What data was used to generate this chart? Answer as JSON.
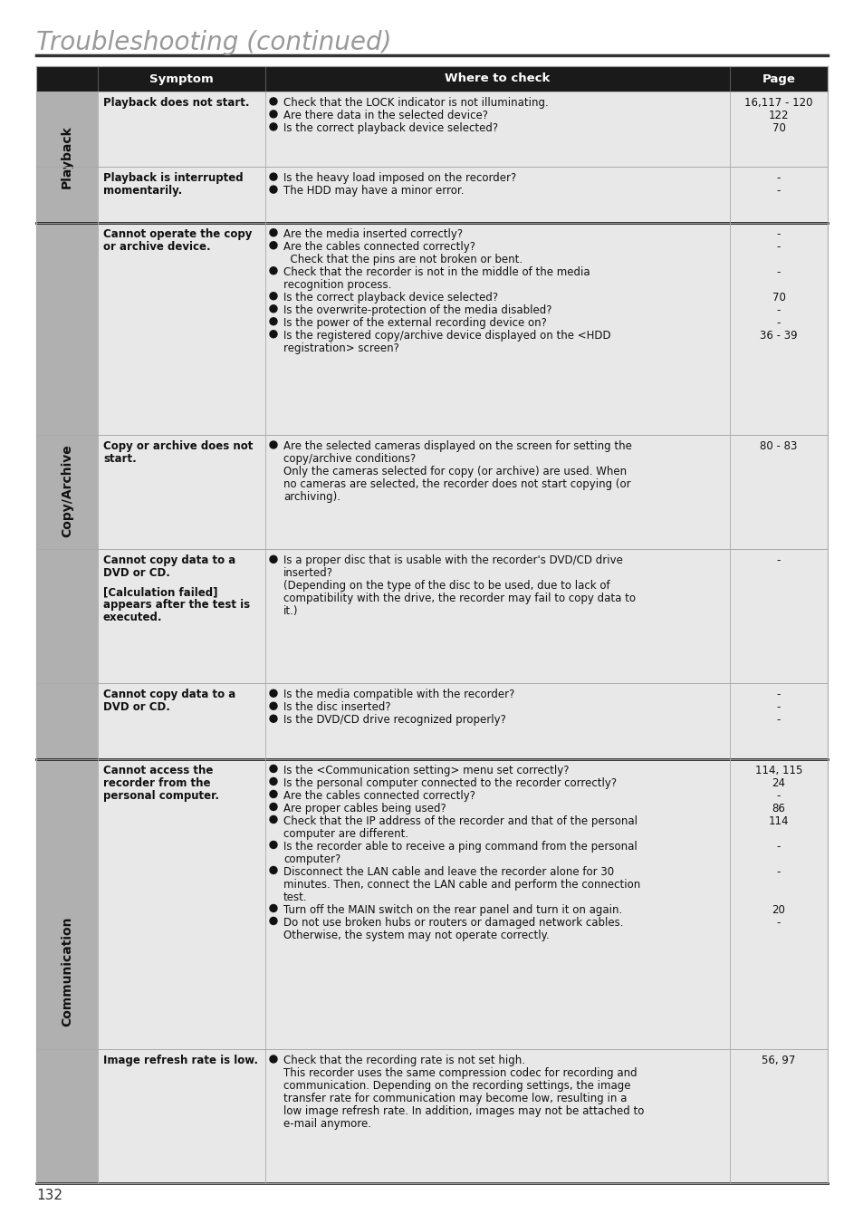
{
  "title": "Troubleshooting (continued)",
  "page_number": "132",
  "bg_color": "#ffffff",
  "header_bg": "#1a1a1a",
  "row_bg": "#e8e8e8",
  "section_label_bg": "#b0b0b0",
  "thick_border_color": "#222222",
  "thin_border_color": "#aaaaaa",
  "title_color": "#999999",
  "sections": [
    {
      "label": "Playback",
      "rows": [
        {
          "symptom_lines": [
            "Playback does not start."
          ],
          "bold": true,
          "checks": [
            {
              "bullet": true,
              "lines": [
                "Check that the LOCK indicator is not illuminating."
              ],
              "page": "16,117 - 120"
            },
            {
              "bullet": true,
              "lines": [
                "Are there data in the selected device?"
              ],
              "page": "122"
            },
            {
              "bullet": true,
              "lines": [
                "Is the correct playback device selected?"
              ],
              "page": "70"
            }
          ],
          "thick_bottom": false
        },
        {
          "symptom_lines": [
            "Playback is interrupted",
            "momentarily."
          ],
          "bold": true,
          "checks": [
            {
              "bullet": true,
              "lines": [
                "Is the heavy load imposed on the recorder?"
              ],
              "page": "-"
            },
            {
              "bullet": true,
              "lines": [
                "The HDD may have a minor error."
              ],
              "page": "-"
            }
          ],
          "thick_bottom": true
        }
      ]
    },
    {
      "label": "Copy/Archive",
      "rows": [
        {
          "symptom_lines": [
            "Cannot operate the copy",
            "or archive device."
          ],
          "bold": true,
          "checks": [
            {
              "bullet": true,
              "lines": [
                "Are the media inserted correctly?"
              ],
              "page": "-"
            },
            {
              "bullet": true,
              "lines": [
                "Are the cables connected correctly?"
              ],
              "page": "-"
            },
            {
              "bullet": false,
              "lines": [
                "  Check that the pins are not broken or bent."
              ],
              "page": ""
            },
            {
              "bullet": true,
              "lines": [
                "Check that the recorder is not in the middle of the media",
                "recognition process."
              ],
              "page": "-"
            },
            {
              "bullet": true,
              "lines": [
                "Is the correct playback device selected?"
              ],
              "page": "70"
            },
            {
              "bullet": true,
              "lines": [
                "Is the overwrite-protection of the media disabled?"
              ],
              "page": "-"
            },
            {
              "bullet": true,
              "lines": [
                "Is the power of the external recording device on?"
              ],
              "page": "-"
            },
            {
              "bullet": true,
              "lines": [
                "Is the registered copy/archive device displayed on the <HDD",
                "registration> screen?"
              ],
              "page": "36 - 39"
            }
          ],
          "thick_bottom": false
        },
        {
          "symptom_lines": [
            "Copy or archive does not",
            "start."
          ],
          "bold": true,
          "checks": [
            {
              "bullet": true,
              "lines": [
                "Are the selected cameras displayed on the screen for setting the",
                "copy/archive conditions?"
              ],
              "page": "80 - 83"
            },
            {
              "bullet": false,
              "lines": [
                "Only the cameras selected for copy (or archive) are used. When",
                "no cameras are selected, the recorder does not start copying (or",
                "archiving)."
              ],
              "page": ""
            }
          ],
          "thick_bottom": false
        },
        {
          "symptom_lines": [
            "Cannot copy data to a",
            "DVD or CD.",
            "",
            "[Calculation failed]",
            "appears after the test is",
            "executed."
          ],
          "bold": true,
          "checks": [
            {
              "bullet": true,
              "lines": [
                "Is a proper disc that is usable with the recorder's DVD/CD drive",
                "inserted?"
              ],
              "page": "-"
            },
            {
              "bullet": false,
              "lines": [
                "(Depending on the type of the disc to be used, due to lack of",
                "compatibility with the drive, the recorder may fail to copy data to",
                "it.)"
              ],
              "page": ""
            }
          ],
          "thick_bottom": false
        },
        {
          "symptom_lines": [
            "Cannot copy data to a",
            "DVD or CD."
          ],
          "bold": true,
          "checks": [
            {
              "bullet": true,
              "lines": [
                "Is the media compatible with the recorder?"
              ],
              "page": "-"
            },
            {
              "bullet": true,
              "lines": [
                "Is the disc inserted?"
              ],
              "page": "-"
            },
            {
              "bullet": true,
              "lines": [
                "Is the DVD/CD drive recognized properly?"
              ],
              "page": "-"
            }
          ],
          "thick_bottom": true
        }
      ]
    },
    {
      "label": "Communication",
      "rows": [
        {
          "symptom_lines": [
            "Cannot access the",
            "recorder from the",
            "personal computer."
          ],
          "bold": true,
          "checks": [
            {
              "bullet": true,
              "lines": [
                "Is the <Communication setting> menu set correctly?"
              ],
              "page": "114, 115"
            },
            {
              "bullet": true,
              "lines": [
                "Is the personal computer connected to the recorder correctly?"
              ],
              "page": "24"
            },
            {
              "bullet": true,
              "lines": [
                "Are the cables connected correctly?"
              ],
              "page": "-"
            },
            {
              "bullet": true,
              "lines": [
                "Are proper cables being used?"
              ],
              "page": "86"
            },
            {
              "bullet": true,
              "lines": [
                "Check that the IP address of the recorder and that of the personal",
                "computer are different."
              ],
              "page": "114"
            },
            {
              "bullet": true,
              "lines": [
                "Is the recorder able to receive a ping command from the personal",
                "computer?"
              ],
              "page": "-"
            },
            {
              "bullet": true,
              "lines": [
                "Disconnect the LAN cable and leave the recorder alone for 30",
                "minutes. Then, connect the LAN cable and perform the connection",
                "test."
              ],
              "page": "-"
            },
            {
              "bullet": true,
              "lines": [
                "Turn off the MAIN switch on the rear panel and turn it on again."
              ],
              "page": "20"
            },
            {
              "bullet": true,
              "lines": [
                "Do not use broken hubs or routers or damaged network cables.",
                "Otherwise, the system may not operate correctly."
              ],
              "page": "-"
            }
          ],
          "thick_bottom": false
        },
        {
          "symptom_lines": [
            "Image refresh rate is low."
          ],
          "bold": true,
          "checks": [
            {
              "bullet": true,
              "lines": [
                "Check that the recording rate is not set high."
              ],
              "page": "56, 97"
            },
            {
              "bullet": false,
              "lines": [
                "This recorder uses the same compression codec for recording and",
                "communication. Depending on the recording settings, the image",
                "transfer rate for communication may become low, resulting in a",
                "low image refresh rate. In addition, images may not be attached to",
                "e-mail anymore."
              ],
              "page": ""
            }
          ],
          "thick_bottom": false
        }
      ]
    }
  ]
}
